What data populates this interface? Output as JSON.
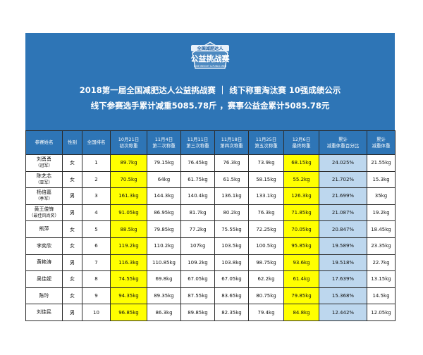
{
  "brand": {
    "primary": "#2e75b6",
    "highlight": "#ffff00",
    "pct_fill": "#bdd7ee"
  },
  "logo": {
    "top_text": "全国减肥达人",
    "main_text": "公益挑战赛",
    "sub_text": "LOSE WEIGHT & PUBLIC WEB"
  },
  "title": {
    "line1": "2018第一届全国减肥达人公益挑战赛 ｜ 线下称重淘汰赛 10强成绩公示",
    "line2": "线下参赛选手累计减重5085.78斤 ，赛事公益金累计5085.78元"
  },
  "headers": [
    {
      "l1": "参赛姓名",
      "l2": ""
    },
    {
      "l1": "性别",
      "l2": ""
    },
    {
      "l1": "全国排名",
      "l2": ""
    },
    {
      "l1": "10月21日",
      "l2": "初次称重"
    },
    {
      "l1": "11月4日",
      "l2": "第二次称重"
    },
    {
      "l1": "11月11日",
      "l2": "第三次称重"
    },
    {
      "l1": "11月18日",
      "l2": "第四次称重"
    },
    {
      "l1": "11月25日",
      "l2": "第五次称重"
    },
    {
      "l1": "12月6日",
      "l2": "最终称重"
    },
    {
      "l1": "累计",
      "l2": "减重体重百分比"
    },
    {
      "l1": "累计",
      "l2": "减重体重"
    }
  ],
  "rows": [
    {
      "name": "刘勇勇",
      "note": "（冠军）",
      "gender": "女",
      "rank": "1",
      "w1": "89.7kg",
      "w2": "79.15kg",
      "w3": "76.45kg",
      "w4": "76.3kg",
      "w5": "73.9kg",
      "w6": "68.15kg",
      "pct": "24.025%",
      "total": "21.55kg"
    },
    {
      "name": "陈艺芯",
      "note": "（亚军）",
      "gender": "女",
      "rank": "2",
      "w1": "70.5kg",
      "w2": "64kg",
      "w3": "61.75kg",
      "w4": "61.5kg",
      "w5": "58.15kg",
      "w6": "55.2kg",
      "pct": "21.702%",
      "total": "15.3kg"
    },
    {
      "name": "杨倍嘉",
      "note": "（季军）",
      "gender": "男",
      "rank": "3",
      "w1": "161.3kg",
      "w2": "144.3kg",
      "w3": "140.4kg",
      "w4": "136.1kg",
      "w5": "133.1kg",
      "w6": "126.3kg",
      "pct": "21.699%",
      "total": "35kg"
    },
    {
      "name": "黄王俊锋",
      "note": "（最佳风尚奖）",
      "gender": "男",
      "rank": "4",
      "w1": "91.05kg",
      "w2": "86.95kg",
      "w3": "81.7kg",
      "w4": "80.2kg",
      "w5": "76.3kg",
      "w6": "71.85kg",
      "pct": "21.087%",
      "total": "19.2kg"
    },
    {
      "name": "熊萍",
      "note": "",
      "gender": "女",
      "rank": "5",
      "w1": "88.5kg",
      "w2": "79.85kg",
      "w3": "77.2kg",
      "w4": "75.55kg",
      "w5": "72.25kg",
      "w6": "70.05kg",
      "pct": "20.847%",
      "total": "18.45kg"
    },
    {
      "name": "李奕欣",
      "note": "",
      "gender": "女",
      "rank": "6",
      "w1": "119.2kg",
      "w2": "110.2kg",
      "w3": "107kg",
      "w4": "103.5kg",
      "w5": "100.5kg",
      "w6": "95.85kg",
      "pct": "19.589%",
      "total": "23.35kg"
    },
    {
      "name": "黄艳涛",
      "note": "",
      "gender": "男",
      "rank": "7",
      "w1": "116.3kg",
      "w2": "110.85kg",
      "w3": "109.2kg",
      "w4": "103.8kg",
      "w5": "98.75kg",
      "w6": "93.6kg",
      "pct": "19.518%",
      "total": "22.7kg"
    },
    {
      "name": "吴佳妮",
      "note": "",
      "gender": "女",
      "rank": "8",
      "w1": "74.55kg",
      "w2": "69.8kg",
      "w3": "67.05kg",
      "w4": "67.05kg",
      "w5": "62.2kg",
      "w6": "61.4kg",
      "pct": "17.639%",
      "total": "13.15kg"
    },
    {
      "name": "陈玲",
      "note": "",
      "gender": "女",
      "rank": "9",
      "w1": "94.35kg",
      "w2": "89.35kg",
      "w3": "87.55kg",
      "w4": "83.65kg",
      "w5": "80.75kg",
      "w6": "79.85kg",
      "pct": "15.368%",
      "total": "14.5kg"
    },
    {
      "name": "刘佳民",
      "note": "",
      "gender": "男",
      "rank": "10",
      "w1": "96.85kg",
      "w2": "86.3kg",
      "w3": "89.85kg",
      "w4": "82.35kg",
      "w5": "79.4kg",
      "w6": "84.8kg",
      "pct": "12.442%",
      "total": "12.05kg"
    }
  ]
}
